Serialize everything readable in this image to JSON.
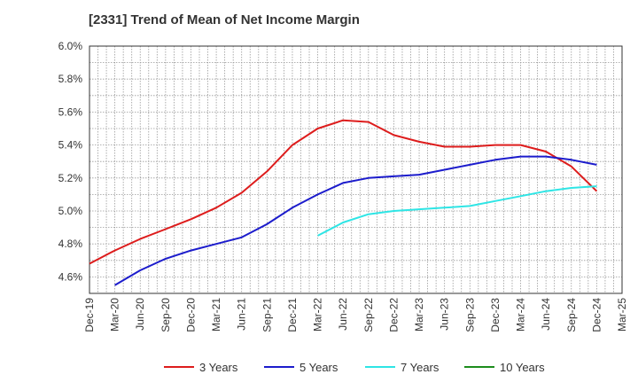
{
  "chart_data": {
    "type": "line",
    "title": "[2331]  Trend of Mean of Net Income Margin",
    "xlabel": "",
    "ylabel": "",
    "x_ticks": [
      "Dec-19",
      "Mar-20",
      "Jun-20",
      "Sep-20",
      "Dec-20",
      "Mar-21",
      "Jun-21",
      "Sep-21",
      "Dec-21",
      "Mar-22",
      "Jun-22",
      "Sep-22",
      "Dec-22",
      "Mar-23",
      "Jun-23",
      "Sep-23",
      "Dec-23",
      "Mar-24",
      "Jun-24",
      "Sep-24",
      "Dec-24",
      "Mar-25"
    ],
    "y_ticks": [
      "4.6%",
      "4.8%",
      "5.0%",
      "5.2%",
      "5.4%",
      "5.6%",
      "5.8%",
      "6.0%"
    ],
    "ylim": [
      4.5,
      6.0
    ],
    "grid": true,
    "legend_position": "bottom",
    "series": [
      {
        "name": "3 Years",
        "color": "#dd1c1c",
        "points": [
          [
            "Dec-19",
            4.68
          ],
          [
            "Mar-20",
            4.76
          ],
          [
            "Jun-20",
            4.83
          ],
          [
            "Sep-20",
            4.89
          ],
          [
            "Dec-20",
            4.95
          ],
          [
            "Mar-21",
            5.02
          ],
          [
            "Jun-21",
            5.11
          ],
          [
            "Sep-21",
            5.24
          ],
          [
            "Dec-21",
            5.4
          ],
          [
            "Mar-22",
            5.5
          ],
          [
            "Jun-22",
            5.55
          ],
          [
            "Sep-22",
            5.54
          ],
          [
            "Dec-22",
            5.46
          ],
          [
            "Mar-23",
            5.42
          ],
          [
            "Jun-23",
            5.39
          ],
          [
            "Sep-23",
            5.39
          ],
          [
            "Dec-23",
            5.4
          ],
          [
            "Mar-24",
            5.4
          ],
          [
            "Jun-24",
            5.36
          ],
          [
            "Sep-24",
            5.27
          ],
          [
            "Dec-24",
            5.12
          ]
        ]
      },
      {
        "name": "5 Years",
        "color": "#1c1ccc",
        "points": [
          [
            "Mar-20",
            4.55
          ],
          [
            "Jun-20",
            4.64
          ],
          [
            "Sep-20",
            4.71
          ],
          [
            "Dec-20",
            4.76
          ],
          [
            "Mar-21",
            4.8
          ],
          [
            "Jun-21",
            4.84
          ],
          [
            "Sep-21",
            4.92
          ],
          [
            "Dec-21",
            5.02
          ],
          [
            "Mar-22",
            5.1
          ],
          [
            "Jun-22",
            5.17
          ],
          [
            "Sep-22",
            5.2
          ],
          [
            "Dec-22",
            5.21
          ],
          [
            "Mar-23",
            5.22
          ],
          [
            "Jun-23",
            5.25
          ],
          [
            "Sep-23",
            5.28
          ],
          [
            "Dec-23",
            5.31
          ],
          [
            "Mar-24",
            5.33
          ],
          [
            "Jun-24",
            5.33
          ],
          [
            "Sep-24",
            5.31
          ],
          [
            "Dec-24",
            5.28
          ]
        ]
      },
      {
        "name": "7 Years",
        "color": "#2ee5e5",
        "points": [
          [
            "Mar-22",
            4.85
          ],
          [
            "Jun-22",
            4.93
          ],
          [
            "Sep-22",
            4.98
          ],
          [
            "Dec-22",
            5.0
          ],
          [
            "Mar-23",
            5.01
          ],
          [
            "Jun-23",
            5.02
          ],
          [
            "Sep-23",
            5.03
          ],
          [
            "Dec-23",
            5.06
          ],
          [
            "Mar-24",
            5.09
          ],
          [
            "Jun-24",
            5.12
          ],
          [
            "Sep-24",
            5.14
          ],
          [
            "Dec-24",
            5.15
          ]
        ]
      },
      {
        "name": "10 Years",
        "color": "#1c8c1c",
        "points": []
      }
    ]
  }
}
